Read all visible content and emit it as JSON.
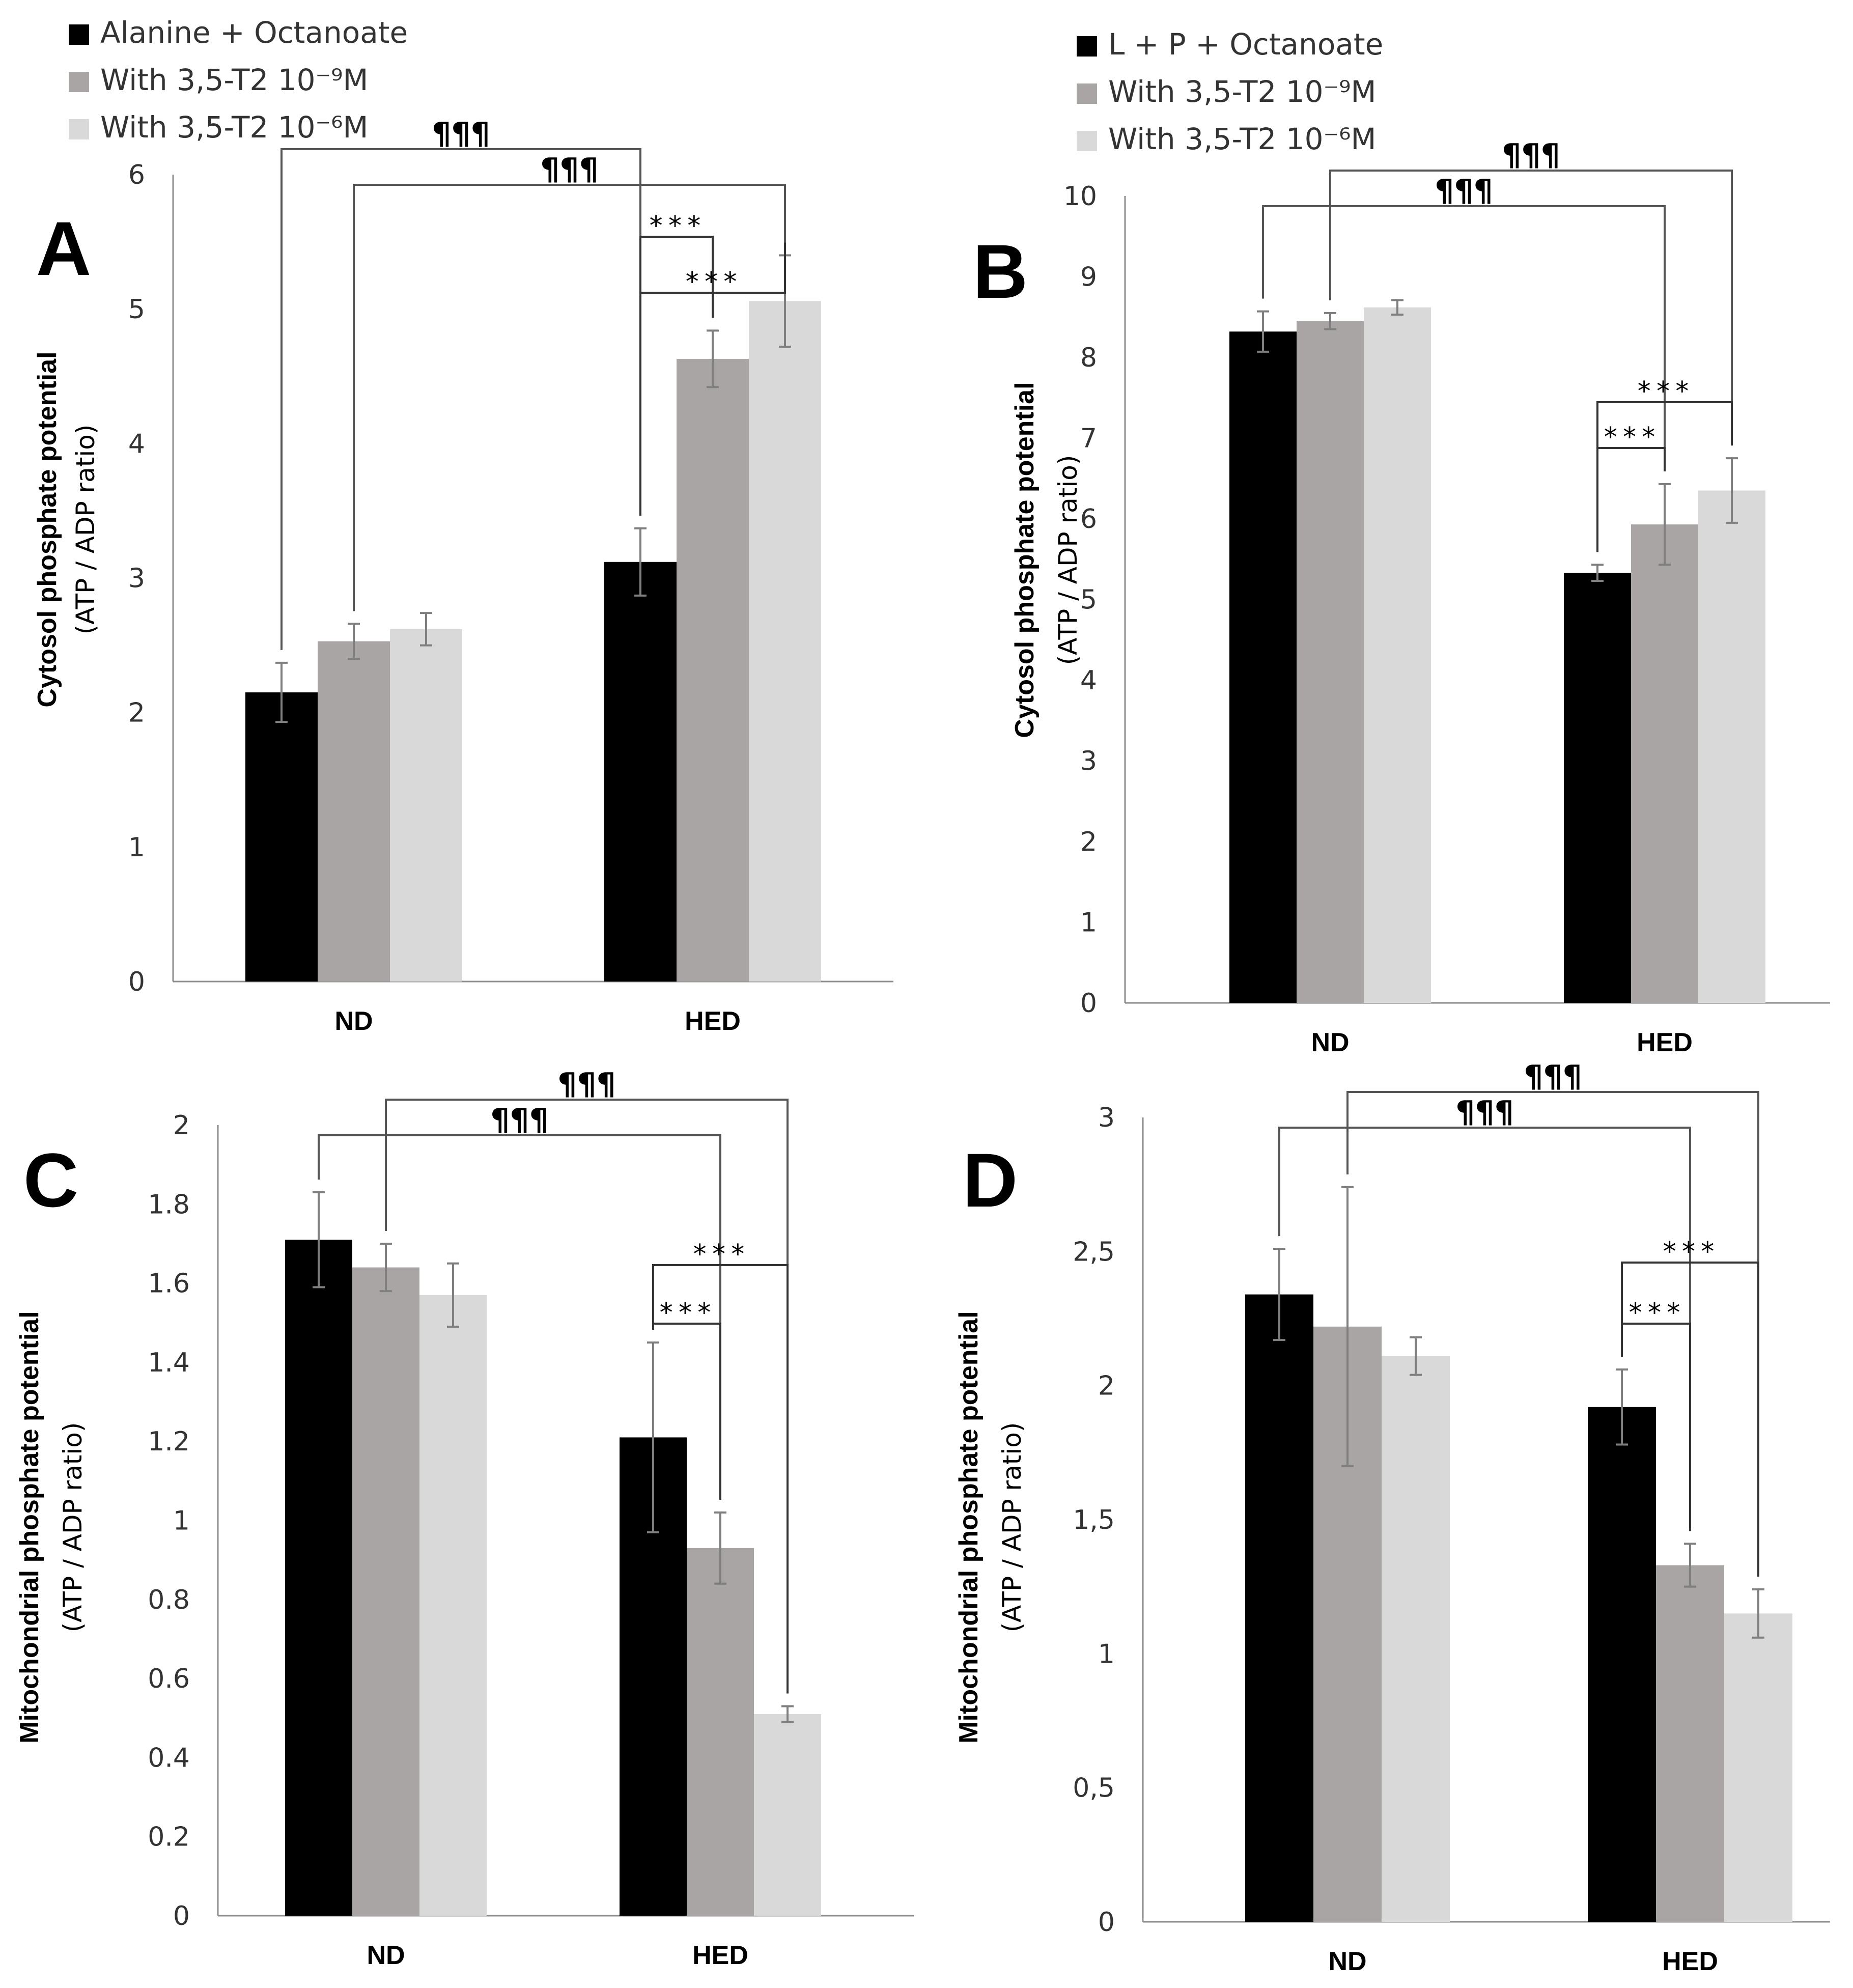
{
  "figure": {
    "colors": {
      "black": "#000000",
      "gray": "#a9a5a5",
      "light": "#d9d9d9",
      "axis": "#8c8c8c",
      "text": "#333333"
    }
  },
  "legend_left": {
    "items": [
      {
        "label": "Alanine + Octanoate",
        "color": "#000000"
      },
      {
        "label": "With 3,5-T2 10⁻⁹M",
        "color": "#a9a5a5"
      },
      {
        "label": "With 3,5-T2 10⁻⁶M",
        "color": "#d9d9d9"
      }
    ]
  },
  "legend_right": {
    "items": [
      {
        "label": "L + P + Octanoate",
        "color": "#000000"
      },
      {
        "label": "With 3,5-T2 10⁻⁹M",
        "color": "#a9a5a5"
      },
      {
        "label": "With 3,5-T2 10⁻⁶M",
        "color": "#d9d9d9"
      }
    ]
  },
  "chart_data": [
    {
      "id": "A",
      "type": "bar",
      "panel_label": "A",
      "categories": [
        "ND",
        "HED"
      ],
      "series": [
        {
          "name": "Alanine + Octanoate",
          "values": [
            2.15,
            3.12
          ],
          "errors": [
            0.22,
            0.25
          ]
        },
        {
          "name": "With 3,5-T2 10⁻⁹M",
          "values": [
            2.53,
            4.63
          ],
          "errors": [
            0.13,
            0.21
          ]
        },
        {
          "name": "With 3,5-T2 10⁻⁶M",
          "values": [
            2.62,
            5.06
          ],
          "errors": [
            0.12,
            0.34
          ]
        }
      ],
      "ylabel": "Cytosol phosphate potential",
      "ylabel2": "(ATP  /  ADP  ratio)",
      "ylim": [
        0,
        6
      ],
      "yticks": [
        0,
        1,
        2,
        3,
        4,
        5,
        6
      ],
      "ytick_labels": [
        "0",
        "1",
        "2",
        "3",
        "4",
        "5",
        "6"
      ],
      "significance": [
        {
          "label": "¶¶¶",
          "from": [
            0,
            0
          ],
          "to": [
            1,
            0
          ],
          "side": "top"
        },
        {
          "label": "¶¶¶",
          "from": [
            0,
            1
          ],
          "to": [
            1,
            2
          ],
          "side": "top"
        },
        {
          "label": "***",
          "from": [
            1,
            0
          ],
          "to": [
            1,
            1
          ],
          "side": "top"
        },
        {
          "label": "***",
          "from": [
            1,
            0
          ],
          "to": [
            1,
            2
          ],
          "side": "top"
        }
      ]
    },
    {
      "id": "B",
      "type": "bar",
      "panel_label": "B",
      "categories": [
        "ND",
        "HED"
      ],
      "series": [
        {
          "name": "L + P + Octanoate",
          "values": [
            8.32,
            5.33
          ],
          "errors": [
            0.25,
            0.1
          ]
        },
        {
          "name": "With 3,5-T2 10⁻⁹M",
          "values": [
            8.45,
            5.93
          ],
          "errors": [
            0.1,
            0.5
          ]
        },
        {
          "name": "With 3,5-T2 10⁻⁶M",
          "values": [
            8.62,
            6.35
          ],
          "errors": [
            0.09,
            0.4
          ]
        }
      ],
      "ylabel": "Cytosol phosphate potential",
      "ylabel2": "(ATP  /  ADP  ratio)",
      "ylim": [
        0,
        10
      ],
      "yticks": [
        0,
        1,
        2,
        3,
        4,
        5,
        6,
        7,
        8,
        9,
        10
      ],
      "ytick_labels": [
        "0",
        "1",
        "2",
        "3",
        "4",
        "5",
        "6",
        "7",
        "8",
        "9",
        "10"
      ],
      "significance": [
        {
          "label": "¶¶¶",
          "from": [
            0,
            1
          ],
          "to": [
            1,
            2
          ],
          "side": "top"
        },
        {
          "label": "¶¶¶",
          "from": [
            0,
            0
          ],
          "to": [
            1,
            1
          ],
          "side": "top"
        },
        {
          "label": "***",
          "from": [
            1,
            0
          ],
          "to": [
            1,
            2
          ],
          "side": "top"
        },
        {
          "label": "***",
          "from": [
            1,
            0
          ],
          "to": [
            1,
            1
          ],
          "side": "top"
        }
      ]
    },
    {
      "id": "C",
      "type": "bar",
      "panel_label": "C",
      "categories": [
        "ND",
        "HED"
      ],
      "series": [
        {
          "name": "L + P + Octanoate",
          "values": [
            1.71,
            1.21
          ],
          "errors": [
            0.12,
            0.24
          ]
        },
        {
          "name": "With 3,5-T2 10⁻⁹M",
          "values": [
            1.64,
            0.93
          ],
          "errors": [
            0.06,
            0.09
          ]
        },
        {
          "name": "With 3,5-T2 10⁻⁶M",
          "values": [
            1.57,
            0.51
          ],
          "errors": [
            0.08,
            0.02
          ]
        }
      ],
      "ylabel": "Mitochondrial phosphate potential",
      "ylabel2": "(ATP  /  ADP  ratio)",
      "ylim": [
        0,
        2
      ],
      "yticks": [
        0,
        0.2,
        0.4,
        0.6,
        0.8,
        1,
        1.2,
        1.4,
        1.6,
        1.8,
        2
      ],
      "ytick_labels": [
        "0",
        "0.2",
        "0.4",
        "0.6",
        "0.8",
        "1",
        "1.2",
        "1.4",
        "1.6",
        "1.8",
        "2"
      ],
      "significance": [
        {
          "label": "¶¶¶",
          "from": [
            0,
            1
          ],
          "to": [
            1,
            2
          ],
          "side": "top"
        },
        {
          "label": "¶¶¶",
          "from": [
            0,
            0
          ],
          "to": [
            1,
            1
          ],
          "side": "top"
        },
        {
          "label": "***",
          "from": [
            1,
            0
          ],
          "to": [
            1,
            2
          ],
          "side": "top"
        },
        {
          "label": "***",
          "from": [
            1,
            0
          ],
          "to": [
            1,
            1
          ],
          "side": "top"
        }
      ]
    },
    {
      "id": "D",
      "type": "bar",
      "panel_label": "D",
      "categories": [
        "ND",
        "HED"
      ],
      "series": [
        {
          "name": "L + P + Octanoate",
          "values": [
            2.34,
            1.92
          ],
          "errors": [
            0.17,
            0.14
          ]
        },
        {
          "name": "With 3,5-T2 10⁻⁹M",
          "values": [
            2.22,
            1.33
          ],
          "errors": [
            0.52,
            0.08
          ]
        },
        {
          "name": "With 3,5-T2 10⁻⁶M",
          "values": [
            2.11,
            1.15
          ],
          "errors": [
            0.07,
            0.09
          ]
        }
      ],
      "ylabel": "Mitochondrial phosphate potential",
      "ylabel2": "(ATP  /  ADP  ratio)",
      "ylim": [
        0,
        3
      ],
      "yticks": [
        0,
        0.5,
        1,
        1.5,
        2,
        2.5,
        3
      ],
      "ytick_labels": [
        "0",
        "0,5",
        "1",
        "1,5",
        "2",
        "2,5",
        "3"
      ],
      "significance": [
        {
          "label": "¶¶¶",
          "from": [
            0,
            1
          ],
          "to": [
            1,
            2
          ],
          "side": "top"
        },
        {
          "label": "¶¶¶",
          "from": [
            0,
            0
          ],
          "to": [
            1,
            1
          ],
          "side": "top"
        },
        {
          "label": "***",
          "from": [
            1,
            0
          ],
          "to": [
            1,
            2
          ],
          "side": "top"
        },
        {
          "label": "***",
          "from": [
            1,
            0
          ],
          "to": [
            1,
            1
          ],
          "side": "top"
        }
      ]
    }
  ]
}
